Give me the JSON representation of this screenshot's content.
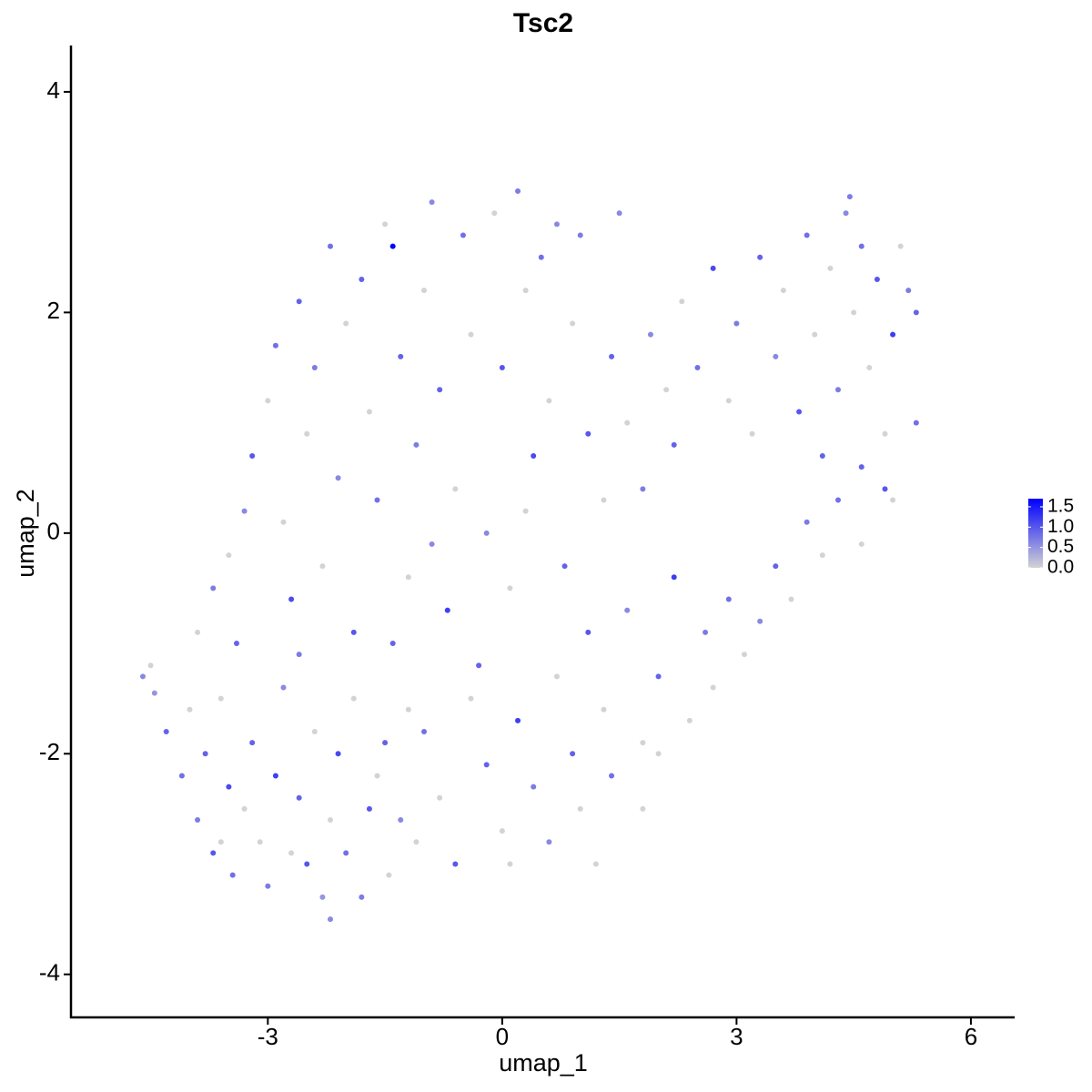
{
  "chart_data": {
    "type": "scatter",
    "title": "Tsc2",
    "xlabel": "umap_1",
    "ylabel": "umap_2",
    "x": [
      -4.6,
      -4.5,
      -4.45,
      -4.3,
      -4.1,
      -4.0,
      -3.9,
      -3.8,
      -3.7,
      -3.6,
      -3.5,
      -3.45,
      -3.3,
      -3.2,
      -3.1,
      -3.0,
      -2.9,
      -2.8,
      -2.7,
      -2.6,
      -2.5,
      -2.4,
      -2.3,
      -2.2,
      -2.2,
      -2.1,
      -2.0,
      -1.9,
      -1.8,
      -1.7,
      -1.6,
      -1.5,
      -1.45,
      -1.3,
      -1.2,
      -1.1,
      -3.9,
      -3.7,
      -3.5,
      -3.4,
      -3.3,
      -3.2,
      -3.0,
      -2.9,
      -2.8,
      -2.7,
      -2.6,
      -2.5,
      -2.4,
      -2.3,
      -2.2,
      -2.1,
      -2.0,
      -1.9,
      -1.8,
      -1.7,
      -1.6,
      -1.5,
      -1.4,
      -1.3,
      -1.2,
      -1.1,
      -1.0,
      -0.9,
      -0.8,
      -0.7,
      -0.6,
      -0.5,
      -0.4,
      -0.3,
      -0.2,
      -0.1,
      0.0,
      0.1,
      0.2,
      0.3,
      0.4,
      0.5,
      0.6,
      0.7,
      0.8,
      0.9,
      1.0,
      1.1,
      -1.0,
      -0.8,
      -0.6,
      -0.4,
      -0.2,
      0.0,
      0.1,
      0.2,
      0.4,
      0.6,
      0.7,
      0.9,
      1.0,
      1.1,
      1.3,
      1.4,
      1.6,
      1.8,
      2.0,
      2.2,
      2.4,
      2.6,
      2.7,
      2.9,
      3.1,
      3.3,
      3.5,
      3.7,
      3.9,
      4.1,
      4.3,
      4.6,
      4.9,
      1.3,
      1.4,
      1.6,
      1.8,
      1.9,
      2.1,
      2.2,
      2.3,
      2.5,
      2.7,
      2.9,
      3.0,
      3.2,
      3.3,
      3.5,
      3.6,
      3.8,
      3.9,
      4.0,
      4.1,
      4.2,
      4.3,
      4.4,
      4.5,
      4.6,
      4.6,
      4.7,
      4.8,
      4.9,
      5.0,
      5.1,
      5.2,
      5.3,
      5.3,
      5.0,
      4.45,
      1.5,
      1.8,
      2.0,
      1.2,
      -2.6,
      -3.6,
      -1.4,
      -0.9,
      0.3
    ],
    "y": [
      -1.3,
      -1.2,
      -1.45,
      -1.8,
      -2.2,
      -1.6,
      -2.6,
      -2.0,
      -2.9,
      -1.5,
      -2.3,
      -3.1,
      -2.5,
      -1.9,
      -2.8,
      -3.2,
      -2.2,
      -1.4,
      -2.9,
      -2.4,
      -3.0,
      -1.8,
      -3.3,
      -2.6,
      -3.5,
      -2.0,
      -2.9,
      -1.5,
      -3.3,
      -2.5,
      -2.2,
      -1.9,
      -3.1,
      -2.6,
      -1.6,
      -2.8,
      -0.9,
      -0.5,
      -0.2,
      -1.0,
      0.2,
      0.7,
      1.2,
      1.7,
      0.1,
      -0.6,
      2.1,
      0.9,
      1.5,
      -0.3,
      2.6,
      0.5,
      1.9,
      -0.9,
      2.3,
      1.1,
      0.3,
      2.8,
      2.6,
      1.6,
      -0.4,
      0.8,
      2.2,
      3.0,
      1.3,
      -0.7,
      0.4,
      2.7,
      1.8,
      -1.2,
      0.0,
      2.9,
      1.5,
      -0.5,
      3.1,
      2.2,
      0.7,
      2.5,
      1.2,
      2.8,
      -0.3,
      1.9,
      2.7,
      0.9,
      -1.8,
      -2.4,
      -3.0,
      -1.5,
      -2.1,
      -2.7,
      -3.0,
      -1.7,
      -2.3,
      -2.8,
      -1.3,
      -2.0,
      -2.5,
      -0.9,
      -1.6,
      -2.2,
      -0.7,
      -1.9,
      -1.3,
      -0.4,
      -1.7,
      -0.9,
      -1.4,
      -0.6,
      -1.1,
      -0.8,
      -0.3,
      -0.6,
      0.1,
      -0.2,
      0.3,
      -0.1,
      0.4,
      0.3,
      1.6,
      1.0,
      0.4,
      1.8,
      1.3,
      0.8,
      2.1,
      1.5,
      2.4,
      1.2,
      1.9,
      0.9,
      2.5,
      1.6,
      2.2,
      1.1,
      2.7,
      1.8,
      0.7,
      2.4,
      1.3,
      2.9,
      2.0,
      0.6,
      2.6,
      1.5,
      2.3,
      0.9,
      1.8,
      2.6,
      2.2,
      2.0,
      1.0,
      0.3,
      3.05,
      2.9,
      -2.5,
      -2.0,
      -3.0,
      -1.1,
      -2.8,
      -1.0,
      -0.1,
      0.2
    ],
    "values": [
      0.6,
      0,
      0.5,
      0.9,
      0.8,
      0,
      0.7,
      0.9,
      1.0,
      0,
      1.1,
      0.8,
      0,
      0.9,
      0,
      0.7,
      1.2,
      0.6,
      0,
      0.9,
      1.0,
      0,
      0.5,
      0,
      0.6,
      1.1,
      0.8,
      0,
      0.7,
      1.0,
      0,
      0.9,
      0,
      0.6,
      0,
      0,
      0,
      0.7,
      0,
      0.9,
      0.6,
      1.0,
      0,
      0.8,
      0,
      1.1,
      0.9,
      0,
      0.7,
      0,
      0.8,
      0.6,
      0,
      1.0,
      0.9,
      0,
      0.8,
      0,
      1.7,
      0.9,
      0,
      0.7,
      0,
      0.6,
      0.9,
      1.2,
      0,
      0.8,
      0,
      0.9,
      0.6,
      0,
      1.0,
      0,
      0.7,
      0,
      1.1,
      0.8,
      0,
      0.6,
      0.9,
      0,
      0.7,
      1.0,
      0.8,
      0,
      1.0,
      0,
      0.9,
      0,
      0,
      1.2,
      0.7,
      0.6,
      0,
      0.9,
      0,
      1.0,
      0,
      0.8,
      0.6,
      0,
      0.9,
      1.2,
      0,
      0.7,
      0,
      0.8,
      0,
      0.6,
      0.9,
      0,
      0.7,
      0,
      0.8,
      0,
      1.0,
      0,
      0.9,
      0,
      0.7,
      0.6,
      0,
      0.9,
      0,
      0.8,
      1.1,
      0,
      0.7,
      0,
      0.9,
      0.6,
      0,
      1.0,
      0.8,
      0,
      0.9,
      0,
      0.7,
      0.6,
      0,
      0.9,
      0.8,
      0,
      1.0,
      0,
      1.2,
      0,
      0.7,
      0.9,
      0.8,
      0,
      0.7,
      0.6,
      0,
      0,
      0,
      0.7,
      0,
      0.9,
      0.6,
      0
    ],
    "xlim": [
      -5.52,
      6.56
    ],
    "ylim": [
      -4.39,
      4.42
    ],
    "xticks": [
      -3,
      0,
      3,
      6
    ],
    "yticks": [
      -4,
      -2,
      0,
      2,
      4
    ],
    "color_scale": {
      "low": "#d3d3d3",
      "high": "#0000ff",
      "lim": [
        0,
        1.7
      ],
      "ticks": [
        {
          "value": 0,
          "label": "0.0"
        },
        {
          "value": 0.5,
          "label": "0.5"
        },
        {
          "value": 1,
          "label": "1.0"
        },
        {
          "value": 1.5,
          "label": "1.5"
        }
      ]
    }
  }
}
